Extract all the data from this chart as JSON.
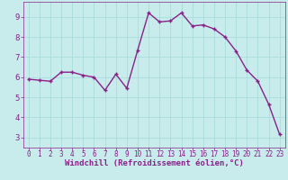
{
  "x": [
    0,
    1,
    2,
    3,
    4,
    5,
    6,
    7,
    8,
    9,
    10,
    11,
    12,
    13,
    14,
    15,
    16,
    17,
    18,
    19,
    20,
    21,
    22,
    23
  ],
  "y": [
    5.9,
    5.85,
    5.8,
    6.25,
    6.25,
    6.1,
    6.0,
    5.35,
    6.15,
    5.45,
    7.35,
    9.2,
    8.75,
    8.8,
    9.2,
    8.55,
    8.6,
    8.4,
    8.0,
    7.3,
    6.35,
    5.8,
    4.65,
    3.15
  ],
  "line_color": "#882288",
  "marker_color": "#882288",
  "bg_color": "#c8ecec",
  "grid_color": "#aadddd",
  "xlabel": "Windchill (Refroidissement éolien,°C)",
  "xlabel_color": "#882288",
  "tick_color": "#882288",
  "ylim": [
    2.5,
    9.75
  ],
  "xlim": [
    -0.5,
    23.5
  ],
  "yticks": [
    3,
    4,
    5,
    6,
    7,
    8,
    9
  ],
  "xticks": [
    0,
    1,
    2,
    3,
    4,
    5,
    6,
    7,
    8,
    9,
    10,
    11,
    12,
    13,
    14,
    15,
    16,
    17,
    18,
    19,
    20,
    21,
    22,
    23
  ],
  "linewidth": 1.0,
  "markersize": 2.5,
  "font_family": "monospace",
  "xlabel_fontsize": 6.5,
  "tick_fontsize_x": 5.5,
  "tick_fontsize_y": 6.5
}
